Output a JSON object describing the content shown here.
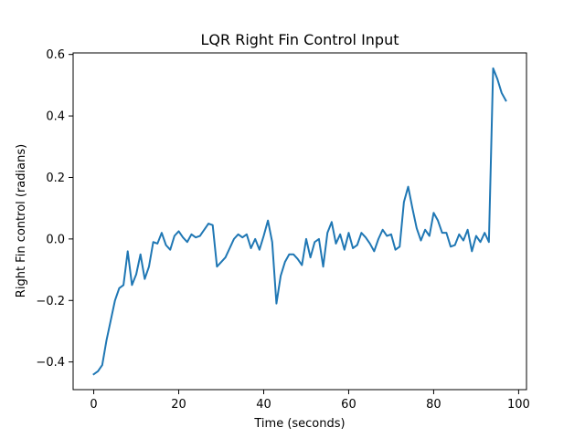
{
  "chart_data": {
    "type": "line",
    "title": "LQR Right Fin Control Input",
    "xlabel": "Time (seconds)",
    "ylabel": "Right Fin control (radians)",
    "xlim": [
      -4.85,
      101.85
    ],
    "ylim": [
      -0.49,
      0.605
    ],
    "grid": false,
    "x_ticks": [
      0,
      20,
      40,
      60,
      80,
      100
    ],
    "x_tick_labels": [
      "0",
      "20",
      "40",
      "60",
      "80",
      "100"
    ],
    "y_ticks": [
      -0.4,
      -0.2,
      0.0,
      0.2,
      0.4,
      0.6
    ],
    "y_tick_labels": [
      "−0.4",
      "−0.2",
      "0.0",
      "0.2",
      "0.4",
      "0.6"
    ],
    "series": [
      {
        "color": "#1f77b4",
        "x": [
          0,
          1,
          2,
          3,
          4,
          5,
          6,
          7,
          8,
          9,
          10,
          11,
          12,
          13,
          14,
          15,
          16,
          17,
          18,
          19,
          20,
          21,
          22,
          23,
          24,
          25,
          26,
          27,
          28,
          29,
          30,
          31,
          32,
          33,
          34,
          35,
          36,
          37,
          38,
          39,
          40,
          41,
          42,
          43,
          44,
          45,
          46,
          47,
          48,
          49,
          50,
          51,
          52,
          53,
          54,
          55,
          56,
          57,
          58,
          59,
          60,
          61,
          62,
          63,
          64,
          65,
          66,
          67,
          68,
          69,
          70,
          71,
          72,
          73,
          74,
          75,
          76,
          77,
          78,
          79,
          80,
          81,
          82,
          83,
          84,
          85,
          86,
          87,
          88,
          89,
          90,
          91,
          92,
          93,
          94,
          95,
          96,
          97
        ],
        "y": [
          -0.44,
          -0.43,
          -0.41,
          -0.33,
          -0.265,
          -0.2,
          -0.16,
          -0.15,
          -0.04,
          -0.15,
          -0.115,
          -0.05,
          -0.13,
          -0.09,
          -0.01,
          -0.015,
          0.02,
          -0.02,
          -0.035,
          0.01,
          0.025,
          0.005,
          -0.01,
          0.015,
          0.005,
          0.01,
          0.03,
          0.05,
          0.045,
          -0.09,
          -0.075,
          -0.06,
          -0.03,
          0.0,
          0.015,
          0.005,
          0.015,
          -0.03,
          0.0,
          -0.035,
          0.01,
          0.06,
          -0.01,
          -0.21,
          -0.12,
          -0.075,
          -0.05,
          -0.05,
          -0.065,
          -0.085,
          0.0,
          -0.06,
          -0.01,
          0.0,
          -0.09,
          0.02,
          0.055,
          -0.015,
          0.015,
          -0.035,
          0.02,
          -0.03,
          -0.02,
          0.02,
          0.005,
          -0.015,
          -0.04,
          0.0,
          0.03,
          0.01,
          0.015,
          -0.035,
          -0.025,
          0.12,
          0.17,
          0.1,
          0.035,
          -0.005,
          0.03,
          0.01,
          0.085,
          0.06,
          0.02,
          0.02,
          -0.025,
          -0.02,
          0.015,
          -0.005,
          0.03,
          -0.04,
          0.01,
          -0.01,
          0.02,
          -0.01,
          0.555,
          0.52,
          0.475,
          0.45
        ]
      }
    ]
  }
}
